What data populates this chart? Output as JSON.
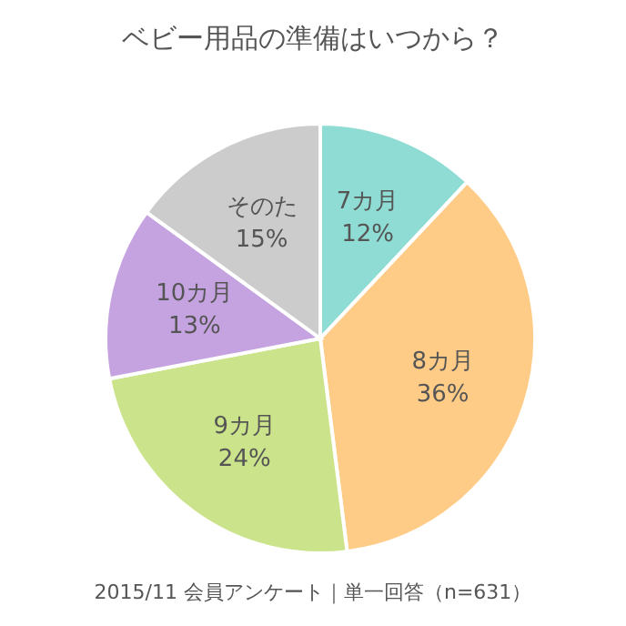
{
  "chart_data": {
    "type": "pie",
    "title": "ベビー用品の準備はいつから？",
    "categories": [
      "7カ月",
      "8カ月",
      "9カ月",
      "10カ月",
      "そのた"
    ],
    "values": [
      12,
      36,
      24,
      13,
      15
    ],
    "colors": [
      "#8edcd4",
      "#ffcc88",
      "#cbe38a",
      "#c5a3e0",
      "#cccccc"
    ],
    "value_labels": [
      "12%",
      "36%",
      "24%",
      "13%",
      "15%"
    ],
    "annotations": [
      "2015/11 会員アンケート｜単一回答（n=631）"
    ]
  }
}
